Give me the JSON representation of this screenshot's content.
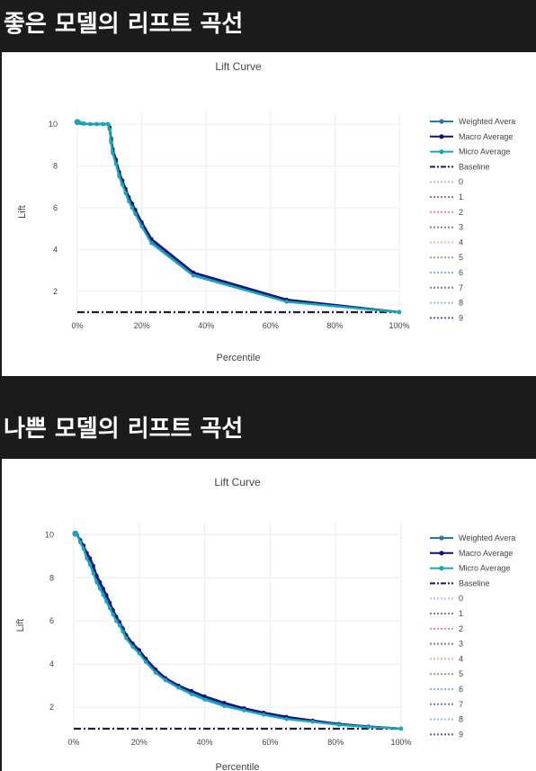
{
  "headings": {
    "good": "좋은 모델의 리프트 곡선",
    "bad": "나쁜 모델의 리프트 곡선"
  },
  "colors": {
    "weighted": "#1f77b4",
    "macro": "#0d1280",
    "micro": "#17a8b8",
    "baseline": "#241a45",
    "classes": [
      "#c7b8e6",
      "#9b7a8e",
      "#ef79b8",
      "#6e8a7e",
      "#f5b399",
      "#c88a7a",
      "#7ab8dc",
      "#6f86a8",
      "#86c9e6",
      "#6a5a8e"
    ]
  },
  "chart_data": [
    {
      "type": "line",
      "title": "Lift Curve",
      "xlabel": "Percentile",
      "ylabel": "Lift",
      "xlim": [
        0,
        100
      ],
      "ylim": [
        1,
        10.6
      ],
      "x_ticks": [
        "0%",
        "20%",
        "40%",
        "60%",
        "80%",
        "100%"
      ],
      "y_ticks": [
        "2",
        "4",
        "6",
        "8",
        "10"
      ],
      "legend": [
        "Weighted Avera",
        "Macro Average",
        "Micro Average",
        "Baseline",
        "0",
        "1",
        "2",
        "3",
        "4",
        "5",
        "6",
        "7",
        "8",
        "9"
      ],
      "series": [
        {
          "name": "Weighted Avera",
          "x": [
            0,
            1,
            2,
            4,
            6,
            8,
            9.5,
            10,
            10.5,
            11,
            12,
            13,
            14,
            15,
            16,
            17,
            18,
            20,
            23,
            36,
            65,
            100
          ],
          "y": [
            10.1,
            10.05,
            10.02,
            10.0,
            10.0,
            10.0,
            10.0,
            9.8,
            9.2,
            8.7,
            8.2,
            7.6,
            7.2,
            6.8,
            6.4,
            6.1,
            5.8,
            5.2,
            4.4,
            2.85,
            1.55,
            1.0
          ]
        },
        {
          "name": "Macro Average",
          "x": [
            0,
            1,
            2,
            4,
            6,
            8,
            9.5,
            10,
            10.5,
            11,
            12,
            13,
            14,
            15,
            16,
            17,
            18,
            20,
            23,
            36,
            65,
            100
          ],
          "y": [
            10.1,
            10.05,
            10.02,
            10.0,
            10.0,
            10.0,
            10.0,
            9.85,
            9.3,
            8.8,
            8.3,
            7.7,
            7.3,
            6.9,
            6.5,
            6.2,
            5.9,
            5.3,
            4.5,
            2.9,
            1.6,
            1.0
          ]
        },
        {
          "name": "Micro Average",
          "x": [
            0,
            1,
            2,
            4,
            6,
            8,
            9.5,
            10,
            10.5,
            11,
            12,
            13,
            14,
            15,
            16,
            17,
            18,
            20,
            23,
            36,
            65,
            100
          ],
          "y": [
            10.1,
            10.05,
            10.02,
            10.0,
            10.0,
            10.0,
            10.0,
            9.75,
            9.1,
            8.6,
            8.1,
            7.5,
            7.1,
            6.7,
            6.3,
            6.0,
            5.7,
            5.1,
            4.3,
            2.75,
            1.5,
            1.0
          ]
        },
        {
          "name": "Baseline",
          "x": [
            0,
            100
          ],
          "y": [
            1,
            1
          ]
        }
      ]
    },
    {
      "type": "line",
      "title": "Lift Curve",
      "xlabel": "Percentile",
      "ylabel": "Lift",
      "xlim": [
        0,
        100
      ],
      "ylim": [
        1,
        10.6
      ],
      "x_ticks": [
        "0%",
        "20%",
        "40%",
        "60%",
        "80%",
        "100%"
      ],
      "y_ticks": [
        "2",
        "4",
        "6",
        "8",
        "10"
      ],
      "legend": [
        "Weighted Avera",
        "Macro Average",
        "Micro Average",
        "Baseline",
        "0",
        "1",
        "2",
        "3",
        "4",
        "5",
        "6",
        "7",
        "8",
        "9"
      ],
      "series": [
        {
          "name": "Weighted Avera",
          "x": [
            0.5,
            1,
            2,
            3,
            4,
            5,
            6,
            7,
            8,
            9,
            10,
            11,
            12,
            13,
            14,
            15,
            16,
            18,
            20,
            22,
            25,
            28,
            32,
            36,
            40,
            46,
            52,
            58,
            65,
            73,
            81,
            90,
            100
          ],
          "y": [
            10.05,
            10.0,
            9.7,
            9.4,
            9.0,
            8.7,
            8.3,
            7.9,
            7.6,
            7.3,
            7.0,
            6.7,
            6.4,
            6.1,
            5.9,
            5.6,
            5.3,
            4.9,
            4.6,
            4.2,
            3.7,
            3.3,
            2.95,
            2.65,
            2.4,
            2.1,
            1.9,
            1.7,
            1.5,
            1.35,
            1.2,
            1.1,
            1.0
          ]
        },
        {
          "name": "Macro Average",
          "x": [
            0.5,
            1,
            2,
            3,
            4,
            5,
            6,
            7,
            8,
            9,
            10,
            11,
            12,
            13,
            14,
            15,
            16,
            18,
            20,
            22,
            25,
            28,
            32,
            36,
            40,
            46,
            52,
            58,
            65,
            73,
            81,
            90,
            100
          ],
          "y": [
            10.05,
            10.0,
            9.75,
            9.5,
            9.15,
            8.9,
            8.55,
            8.1,
            7.8,
            7.5,
            7.2,
            6.85,
            6.5,
            6.2,
            5.95,
            5.65,
            5.35,
            4.95,
            4.65,
            4.25,
            3.75,
            3.35,
            3.0,
            2.75,
            2.5,
            2.2,
            1.95,
            1.75,
            1.55,
            1.38,
            1.22,
            1.1,
            1.0
          ]
        },
        {
          "name": "Micro Average",
          "x": [
            0.5,
            1,
            2,
            3,
            4,
            5,
            6,
            7,
            8,
            9,
            10,
            11,
            12,
            13,
            14,
            15,
            16,
            18,
            20,
            22,
            25,
            28,
            32,
            36,
            40,
            46,
            52,
            58,
            65,
            73,
            81,
            90,
            100
          ],
          "y": [
            10.05,
            10.0,
            9.65,
            9.35,
            8.9,
            8.6,
            8.2,
            7.8,
            7.5,
            7.2,
            6.9,
            6.6,
            6.3,
            6.0,
            5.8,
            5.5,
            5.2,
            4.8,
            4.5,
            4.1,
            3.6,
            3.25,
            2.9,
            2.6,
            2.35,
            2.05,
            1.85,
            1.65,
            1.45,
            1.32,
            1.18,
            1.08,
            1.0
          ]
        },
        {
          "name": "Baseline",
          "x": [
            0,
            100
          ],
          "y": [
            1,
            1
          ]
        }
      ]
    }
  ]
}
